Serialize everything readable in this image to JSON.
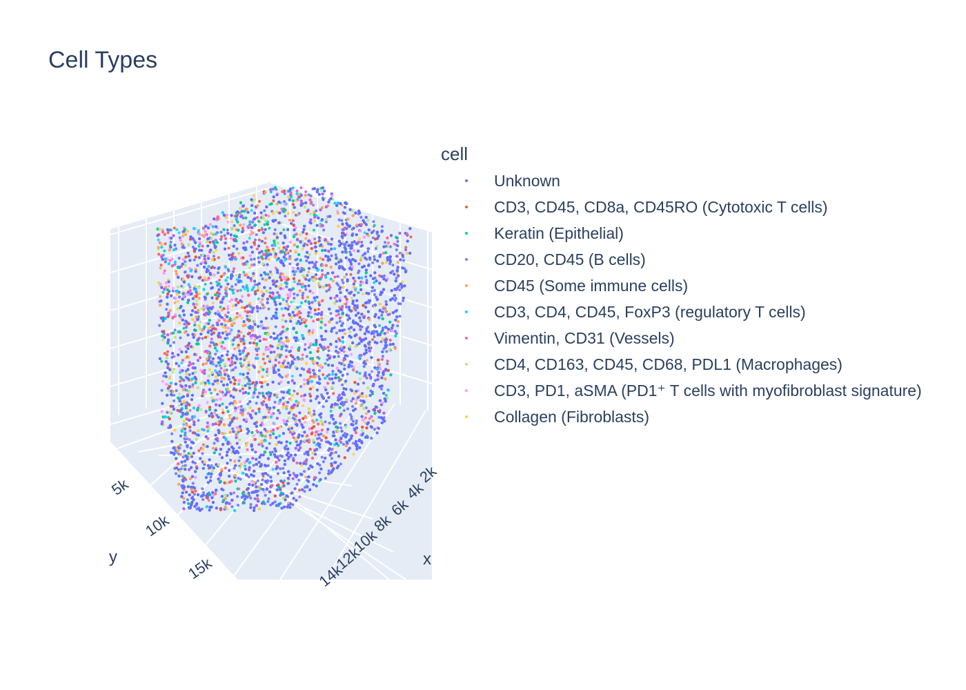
{
  "title": "Cell Types",
  "legend": {
    "title": "cell",
    "items": [
      {
        "label": "Unknown",
        "color": "#636efa"
      },
      {
        "label": "CD3, CD45, CD8a, CD45RO (Cytotoxic T cells)",
        "color": "#ef553b"
      },
      {
        "label": "Keratin (Epithelial)",
        "color": "#00cc96"
      },
      {
        "label": "CD20, CD45 (B cells)",
        "color": "#ab63fa"
      },
      {
        "label": "CD45 (Some immune cells)",
        "color": "#ffa15a"
      },
      {
        "label": "CD3, CD4, CD45, FoxP3 (regulatory T cells)",
        "color": "#19d3f3"
      },
      {
        "label": "Vimentin, CD31 (Vessels)",
        "color": "#ff6692"
      },
      {
        "label": "CD4, CD163, CD45, CD68, PDL1 (Macrophages)",
        "color": "#b6e880"
      },
      {
        "label": "CD3, PD1, aSMA (PD1⁺ T cells with myofibroblast signature)",
        "color": "#ff97ff"
      },
      {
        "label": "Collagen (Fibroblasts)",
        "color": "#fecb52"
      }
    ]
  },
  "chart_data": {
    "type": "scatter",
    "title": "Cell Types",
    "xlabel": "x",
    "ylabel": "y",
    "x_ticks": [
      "2k",
      "4k",
      "6k",
      "8k",
      "10k",
      "12k",
      "14k"
    ],
    "y_ticks": [
      "5k",
      "10k",
      "15k"
    ],
    "series": [
      {
        "name": "Unknown"
      },
      {
        "name": "CD3, CD45, CD8a, CD45RO (Cytotoxic T cells)"
      },
      {
        "name": "Keratin (Epithelial)"
      },
      {
        "name": "CD20, CD45 (B cells)"
      },
      {
        "name": "CD45 (Some immune cells)"
      },
      {
        "name": "CD3, CD4, CD45, FoxP3 (regulatory T cells)"
      },
      {
        "name": "Vimentin, CD31 (Vessels)"
      },
      {
        "name": "CD4, CD163, CD45, CD68, PDL1 (Macrophages)"
      },
      {
        "name": "CD3, PD1, aSMA (PD1⁺ T cells with myofibroblast signature)"
      },
      {
        "name": "Collagen (Fibroblasts)"
      }
    ],
    "grid": true,
    "legend_position": "right"
  }
}
